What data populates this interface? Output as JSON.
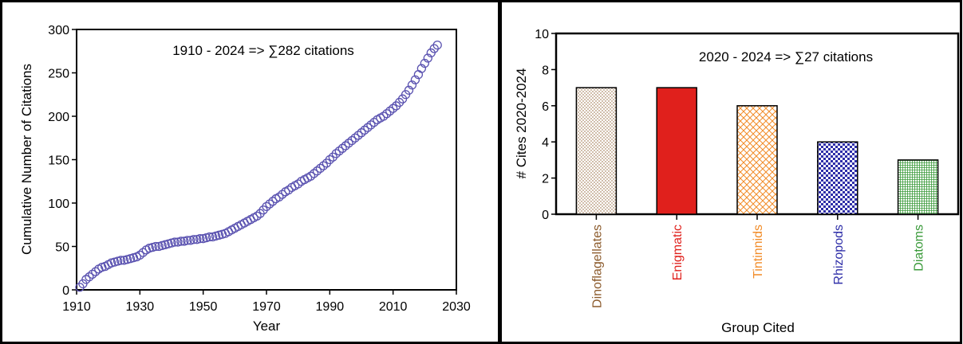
{
  "chart_data": [
    {
      "type": "scatter",
      "annotation": "1910 - 2024 => ∑282 citations",
      "xlabel": "Year",
      "ylabel": "Cumulative Number of Citations",
      "xlim": [
        1910,
        2030
      ],
      "ylim": [
        0,
        300
      ],
      "x_ticks": [
        "1910",
        "1930",
        "1950",
        "1970",
        "1990",
        "2010",
        "2030"
      ],
      "y_ticks": [
        "0",
        "50",
        "100",
        "150",
        "200",
        "250",
        "300"
      ],
      "grid": false,
      "marker": "open-circle",
      "color": "#5a52b0",
      "series": [
        {
          "x": [
            1911,
            1912,
            1913,
            1914,
            1915,
            1916,
            1917,
            1918,
            1919,
            1920,
            1921,
            1922,
            1923,
            1924,
            1925,
            1926,
            1927,
            1928,
            1929,
            1930,
            1931,
            1932,
            1933,
            1934,
            1935,
            1936,
            1937,
            1938,
            1939,
            1940,
            1941,
            1942,
            1943,
            1944,
            1945,
            1946,
            1947,
            1948,
            1949,
            1950,
            1951,
            1952,
            1953,
            1954,
            1955,
            1956,
            1957,
            1958,
            1959,
            1960,
            1961,
            1962,
            1963,
            1964,
            1965,
            1966,
            1967,
            1968,
            1969,
            1970,
            1971,
            1972,
            1973,
            1974,
            1975,
            1976,
            1977,
            1978,
            1979,
            1980,
            1981,
            1982,
            1983,
            1984,
            1985,
            1986,
            1987,
            1988,
            1989,
            1990,
            1991,
            1992,
            1993,
            1994,
            1995,
            1996,
            1997,
            1998,
            1999,
            2000,
            2001,
            2002,
            2003,
            2004,
            2005,
            2006,
            2007,
            2008,
            2009,
            2010,
            2011,
            2012,
            2013,
            2014,
            2015,
            2016,
            2017,
            2018,
            2019,
            2020,
            2021,
            2022,
            2023,
            2024
          ],
          "y": [
            3,
            7,
            12,
            15,
            18,
            21,
            24,
            26,
            27,
            29,
            31,
            32,
            33,
            34,
            34,
            35,
            36,
            37,
            38,
            40,
            43,
            46,
            48,
            49,
            50,
            50,
            51,
            52,
            53,
            54,
            55,
            55,
            56,
            56,
            57,
            57,
            58,
            58,
            59,
            59,
            60,
            61,
            61,
            62,
            63,
            64,
            65,
            67,
            69,
            71,
            73,
            75,
            77,
            79,
            81,
            83,
            85,
            88,
            92,
            96,
            99,
            102,
            105,
            107,
            110,
            113,
            115,
            118,
            120,
            122,
            125,
            127,
            129,
            131,
            134,
            137,
            140,
            143,
            146,
            150,
            153,
            157,
            160,
            163,
            166,
            169,
            172,
            175,
            178,
            181,
            184,
            187,
            190,
            193,
            196,
            198,
            200,
            203,
            206,
            209,
            212,
            216,
            220,
            225,
            230,
            236,
            242,
            248,
            255,
            261,
            267,
            273,
            278,
            282
          ]
        }
      ]
    },
    {
      "type": "bar",
      "annotation": "2020 - 2024 => ∑27 citations",
      "xlabel": "Group Cited",
      "ylabel": "# Cites 2020-2024",
      "ylim": [
        0,
        10
      ],
      "y_ticks": [
        "0",
        "2",
        "4",
        "6",
        "8",
        "10"
      ],
      "grid": false,
      "categories": [
        "Dinoflagellates",
        "Enigmatic",
        "Tintinnids",
        "Rhizopods",
        "Diatoms"
      ],
      "values": [
        7,
        7,
        6,
        4,
        3
      ],
      "colors": [
        "#8b5a2b",
        "#e0201c",
        "#f28c28",
        "#2e2ea8",
        "#3a9a3a"
      ],
      "fills": [
        "dots",
        "solid",
        "crosshatch",
        "checker",
        "fine-grid"
      ]
    }
  ]
}
